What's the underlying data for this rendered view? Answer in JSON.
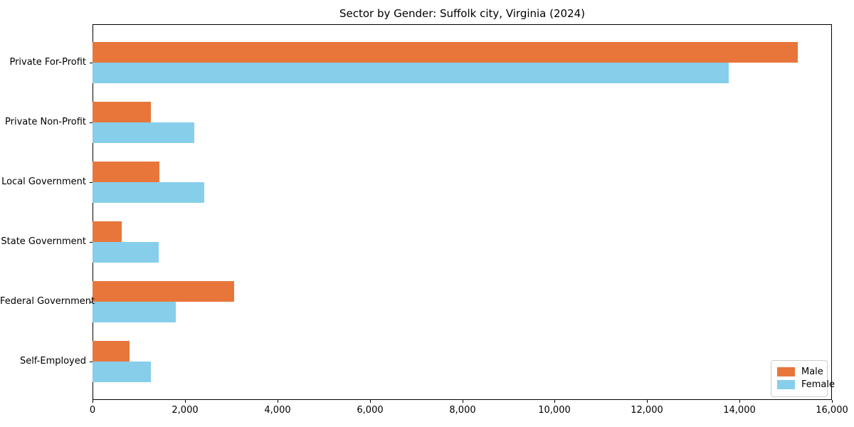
{
  "title": "Sector by Gender: Suffolk city, Virginia (2024)",
  "chart_data": {
    "type": "bar",
    "orientation": "horizontal",
    "title": "Sector by Gender: Suffolk city, Virginia (2024)",
    "categories": [
      "Private For-Profit",
      "Private Non-Profit",
      "Local Government",
      "State Government",
      "Federal Government",
      "Self-Employed"
    ],
    "series": [
      {
        "name": "Male",
        "color": "#E8763B",
        "values": [
          15260,
          1260,
          1450,
          630,
          3070,
          800
        ]
      },
      {
        "name": "Female",
        "color": "#87CEEB",
        "values": [
          13760,
          2200,
          2420,
          1430,
          1800,
          1260
        ]
      }
    ],
    "xlim": [
      0,
      16000
    ],
    "xticks": [
      0,
      2000,
      4000,
      6000,
      8000,
      10000,
      12000,
      14000,
      16000
    ],
    "xtick_labels": [
      "0",
      "2,000",
      "4,000",
      "6,000",
      "8,000",
      "10,000",
      "12,000",
      "14,000",
      "16,000"
    ],
    "xlabel": "",
    "ylabel": "",
    "grid": false,
    "legend_position": "lower right"
  },
  "legend": {
    "items": [
      {
        "label": "Male",
        "color": "#E8763B"
      },
      {
        "label": "Female",
        "color": "#87CEEB"
      }
    ]
  }
}
